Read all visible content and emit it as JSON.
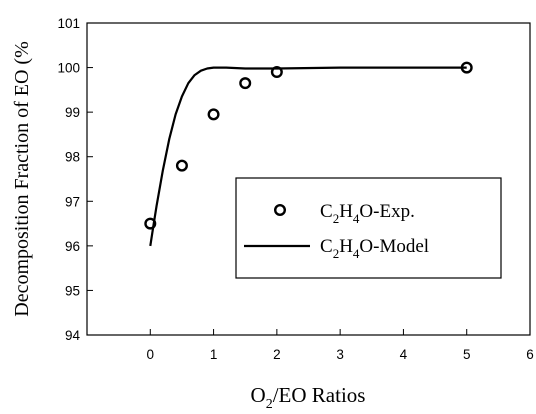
{
  "chart_data": {
    "type": "scatter",
    "xlabel": "O₂/EO Ratios",
    "ylabel": "Decomposition Fraction of EO (%",
    "xlim": [
      -1,
      6
    ],
    "ylim": [
      94,
      101
    ],
    "xticks": [
      0,
      1,
      2,
      3,
      4,
      5,
      6
    ],
    "yticks": [
      94,
      95,
      96,
      97,
      98,
      99,
      100,
      101
    ],
    "grid": false,
    "legend_position": "right",
    "series": [
      {
        "name": "C₂H₄O-Exp.",
        "kind": "scatter",
        "marker": "open-circle",
        "x": [
          0,
          0.5,
          1,
          1.5,
          2,
          5
        ],
        "y": [
          96.5,
          97.8,
          98.95,
          99.65,
          99.9,
          100.0
        ]
      },
      {
        "name": "C₂H₄O-Model",
        "kind": "line",
        "x": [
          0,
          0.05,
          0.1,
          0.2,
          0.3,
          0.4,
          0.5,
          0.6,
          0.7,
          0.8,
          0.9,
          1.0,
          1.2,
          1.5,
          2,
          3,
          4,
          5
        ],
        "y": [
          96.0,
          96.45,
          96.9,
          97.7,
          98.4,
          98.95,
          99.35,
          99.65,
          99.83,
          99.93,
          99.98,
          100.0,
          100.0,
          99.98,
          99.98,
          100.0,
          100.0,
          100.0
        ]
      }
    ]
  },
  "legend": {
    "exp_prefix": "C",
    "exp_sub1": "2",
    "exp_mid": "H",
    "exp_sub2": "4",
    "exp_suffix": "O-Exp.",
    "model_prefix": "C",
    "model_sub1": "2",
    "model_mid": "H",
    "model_sub2": "4",
    "model_suffix": "O-Model"
  },
  "axes_text": {
    "ylabel": "Decomposition Fraction of EO (%",
    "xlabel_prefix": "O",
    "xlabel_sub": "2",
    "xlabel_suffix": "/EO Ratios"
  }
}
